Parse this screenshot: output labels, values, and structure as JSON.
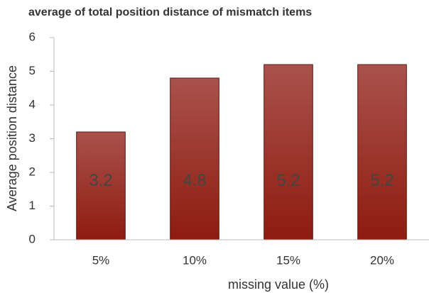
{
  "chart_data": {
    "type": "bar",
    "title": "average of total position distance of mismatch items",
    "x_label": "missing value (%)",
    "y_label": "Average position distance",
    "categories": [
      "5%",
      "10%",
      "15%",
      "20%"
    ],
    "values": [
      3.2,
      4.8,
      5.2,
      5.2
    ],
    "color": "#9a2a20",
    "ylim": [
      0,
      6
    ],
    "yticks": [
      0,
      1,
      2,
      3,
      4,
      5,
      6
    ],
    "grid": false
  }
}
